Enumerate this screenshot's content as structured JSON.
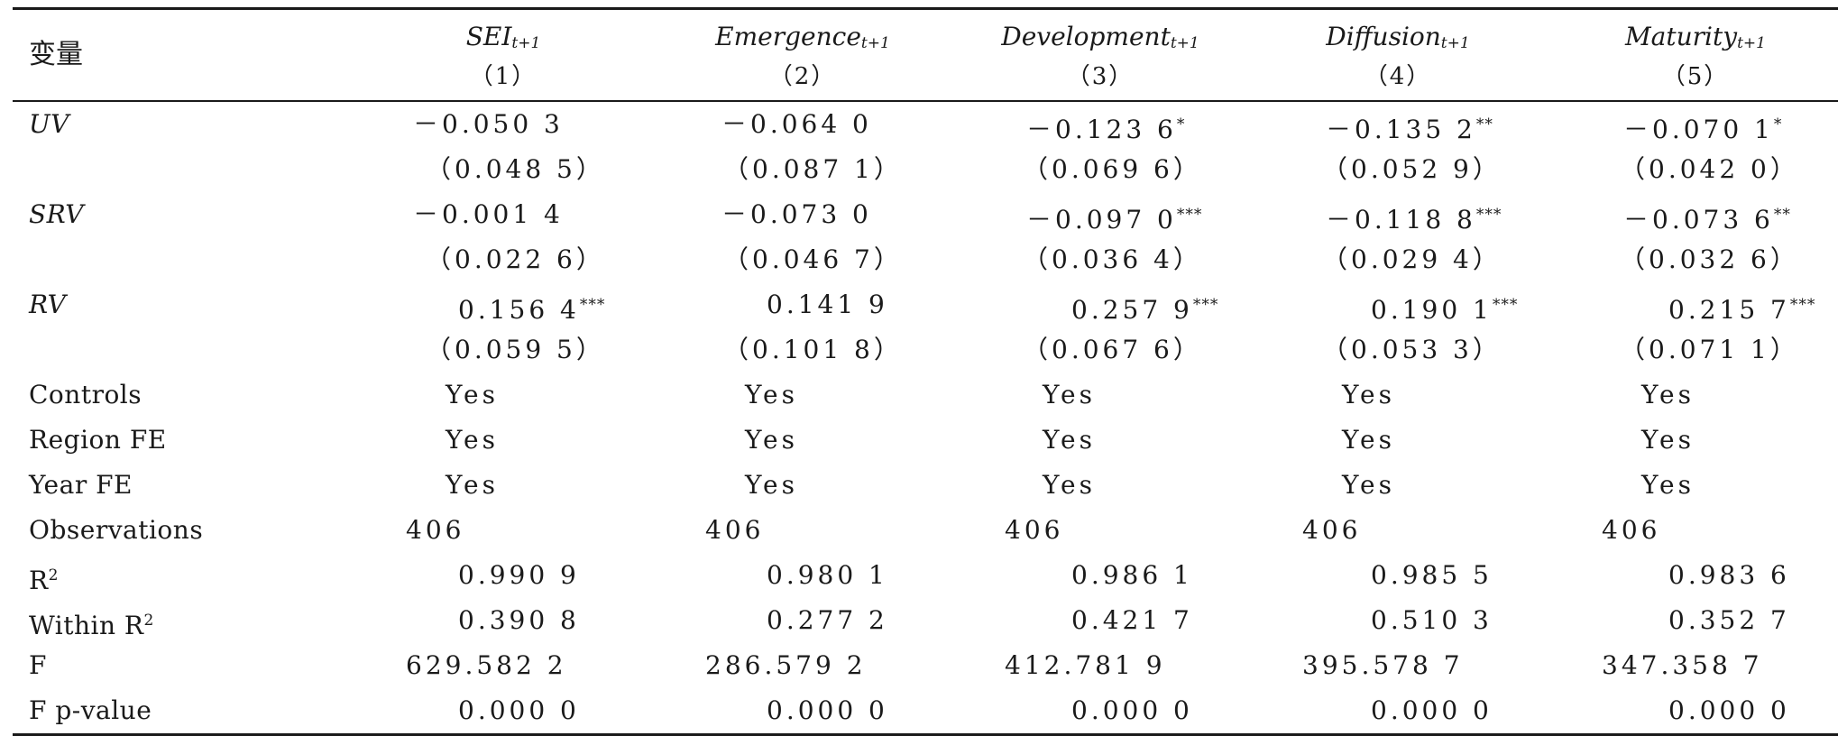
{
  "header": {
    "variable_label": "变量",
    "columns": [
      {
        "name": "SEI",
        "sub": "t+1",
        "num": "（1）"
      },
      {
        "name": "Emergence",
        "sub": "t+1",
        "num": "（2）"
      },
      {
        "name": "Development",
        "sub": "t+1",
        "num": "（3）"
      },
      {
        "name": "Diffusion",
        "sub": "t+1",
        "num": "（4）"
      },
      {
        "name": "Maturity",
        "sub": "t+1",
        "num": "（5）"
      }
    ]
  },
  "rows": [
    {
      "label": "UV",
      "italic": true,
      "values": [
        {
          "v": "－0.050 3",
          "s": ""
        },
        {
          "v": "－0.064 0",
          "s": ""
        },
        {
          "v": "－0.123 6",
          "s": "*"
        },
        {
          "v": "－0.135 2",
          "s": "**"
        },
        {
          "v": "－0.070 1",
          "s": "*"
        }
      ]
    },
    {
      "label": "",
      "values": [
        {
          "v": "（0.048 5）",
          "s": ""
        },
        {
          "v": "（0.087 1）",
          "s": ""
        },
        {
          "v": "（0.069 6）",
          "s": ""
        },
        {
          "v": "（0.052 9）",
          "s": ""
        },
        {
          "v": "（0.042 0）",
          "s": ""
        }
      ]
    },
    {
      "label": "SRV",
      "italic": true,
      "values": [
        {
          "v": "－0.001 4",
          "s": ""
        },
        {
          "v": "－0.073 0",
          "s": ""
        },
        {
          "v": "－0.097 0",
          "s": "***"
        },
        {
          "v": "－0.118 8",
          "s": "***"
        },
        {
          "v": "－0.073 6",
          "s": "**"
        }
      ]
    },
    {
      "label": "",
      "values": [
        {
          "v": "（0.022 6）",
          "s": ""
        },
        {
          "v": "（0.046 7）",
          "s": ""
        },
        {
          "v": "（0.036 4）",
          "s": ""
        },
        {
          "v": "（0.029 4）",
          "s": ""
        },
        {
          "v": "（0.032 6）",
          "s": ""
        }
      ]
    },
    {
      "label": "RV",
      "italic": true,
      "values": [
        {
          "v": "0.156 4",
          "s": "***"
        },
        {
          "v": "0.141 9",
          "s": ""
        },
        {
          "v": "0.257 9",
          "s": "***"
        },
        {
          "v": "0.190 1",
          "s": "***"
        },
        {
          "v": "0.215 7",
          "s": "***"
        }
      ]
    },
    {
      "label": "",
      "values": [
        {
          "v": "（0.059 5）",
          "s": ""
        },
        {
          "v": "（0.101 8）",
          "s": ""
        },
        {
          "v": "（0.067 6）",
          "s": ""
        },
        {
          "v": "（0.053 3）",
          "s": ""
        },
        {
          "v": "（0.071 1）",
          "s": ""
        }
      ]
    },
    {
      "label": "Controls",
      "values": [
        {
          "v": "Yes",
          "s": ""
        },
        {
          "v": "Yes",
          "s": ""
        },
        {
          "v": "Yes",
          "s": ""
        },
        {
          "v": "Yes",
          "s": ""
        },
        {
          "v": "Yes",
          "s": ""
        }
      ]
    },
    {
      "label": "Region FE",
      "values": [
        {
          "v": "Yes",
          "s": ""
        },
        {
          "v": "Yes",
          "s": ""
        },
        {
          "v": "Yes",
          "s": ""
        },
        {
          "v": "Yes",
          "s": ""
        },
        {
          "v": "Yes",
          "s": ""
        }
      ]
    },
    {
      "label": "Year FE",
      "values": [
        {
          "v": "Yes",
          "s": ""
        },
        {
          "v": "Yes",
          "s": ""
        },
        {
          "v": "Yes",
          "s": ""
        },
        {
          "v": "Yes",
          "s": ""
        },
        {
          "v": "Yes",
          "s": ""
        }
      ]
    },
    {
      "label": "Observations",
      "values": [
        {
          "v": "406",
          "s": ""
        },
        {
          "v": "406",
          "s": ""
        },
        {
          "v": "406",
          "s": ""
        },
        {
          "v": "406",
          "s": ""
        },
        {
          "v": "406",
          "s": ""
        }
      ]
    },
    {
      "label": "R",
      "label_sup": "2",
      "values": [
        {
          "v": "0.990 9",
          "s": ""
        },
        {
          "v": "0.980 1",
          "s": ""
        },
        {
          "v": "0.986 1",
          "s": ""
        },
        {
          "v": "0.985 5",
          "s": ""
        },
        {
          "v": "0.983 6",
          "s": ""
        }
      ]
    },
    {
      "label": "Within R",
      "label_sup": "2",
      "values": [
        {
          "v": "0.390 8",
          "s": ""
        },
        {
          "v": "0.277 2",
          "s": ""
        },
        {
          "v": "0.421 7",
          "s": ""
        },
        {
          "v": "0.510 3",
          "s": ""
        },
        {
          "v": "0.352 7",
          "s": ""
        }
      ]
    },
    {
      "label": "F",
      "values": [
        {
          "v": "629.582 2",
          "s": ""
        },
        {
          "v": "286.579 2",
          "s": ""
        },
        {
          "v": "412.781 9",
          "s": ""
        },
        {
          "v": "395.578 7",
          "s": ""
        },
        {
          "v": "347.358 7",
          "s": ""
        }
      ]
    },
    {
      "label": "F p-value",
      "values": [
        {
          "v": "0.000 0",
          "s": ""
        },
        {
          "v": "0.000 0",
          "s": ""
        },
        {
          "v": "0.000 0",
          "s": ""
        },
        {
          "v": "0.000 0",
          "s": ""
        },
        {
          "v": "0.000 0",
          "s": ""
        }
      ]
    }
  ]
}
